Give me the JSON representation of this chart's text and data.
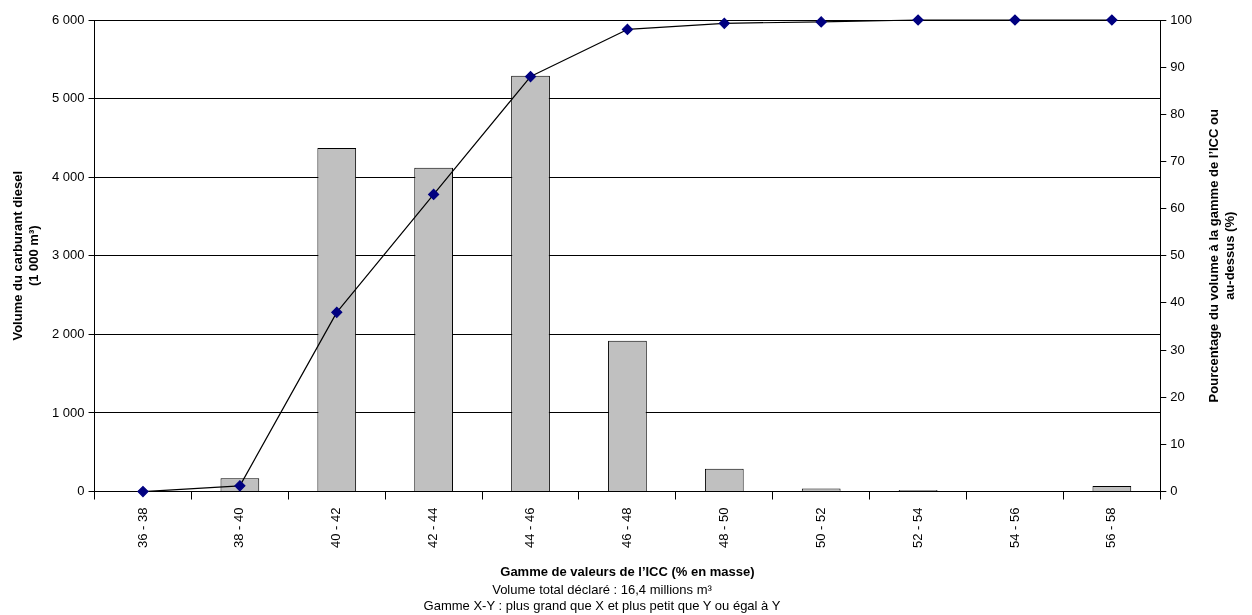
{
  "chart_data": {
    "type": "bar",
    "categories": [
      "36 - 38",
      "38 - 40",
      "40 - 42",
      "42 - 44",
      "44 - 46",
      "46 - 48",
      "48 - 50",
      "50 - 52",
      "52 - 54",
      "54 - 56",
      "56 - 58"
    ],
    "series": [
      {
        "color": "#c0c0c0",
        "values": [
          0,
          170,
          4370,
          4120,
          5290,
          1920,
          290,
          40,
          20,
          0,
          70
        ]
      },
      {
        "type": "line",
        "axis": "y2",
        "color": "#000080",
        "marker": "diamond",
        "values": [
          0,
          1.2,
          38,
          63,
          88,
          98,
          99.3,
          99.6,
          100,
          100,
          100
        ]
      }
    ],
    "xlabel": "Gamme de valeurs de l’ICC (% en masse)",
    "ylabel": "Volume du carburant diesel (1 000 m³)",
    "y2label": "Pourcentage du volume à la gamme de l’ICC ou au-dessus (%)",
    "ylim": [
      0,
      6000
    ],
    "yticks": [
      0,
      {
        "value": 1000,
        "label": "1 000"
      },
      {
        "value": 2000,
        "label": "2 000"
      },
      {
        "value": 3000,
        "label": "3 000"
      },
      {
        "value": 4000,
        "label": "4 000"
      },
      {
        "value": 5000,
        "label": "5 000"
      },
      {
        "value": 6000,
        "label": "6 000"
      }
    ],
    "y2lim": [
      0,
      100
    ],
    "y2ticks": [
      0,
      10,
      20,
      30,
      40,
      50,
      60,
      70,
      80,
      90,
      100
    ],
    "grid": "y",
    "annotations": [
      "Volume total déclaré : 16,4 millions m³",
      "Gamme X-Y : plus grand que X et plus petit que Y ou égal à Y"
    ]
  }
}
